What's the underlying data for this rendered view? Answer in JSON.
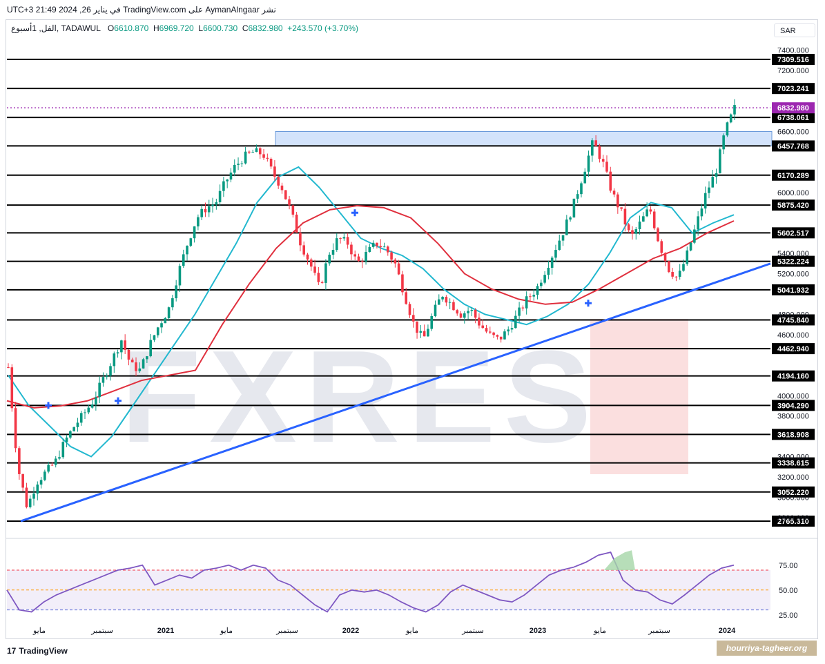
{
  "header": {
    "publisher": "نشر AymanAlngaar على TradingView.com في يناير 26, 2024 21:49 UTC+3",
    "symbol": "الفل, 1أسبوع, TADAWUL",
    "o_label": "O",
    "o_value": "6610.870",
    "h_label": "H",
    "h_value": "6969.720",
    "l_label": "L",
    "l_value": "6600.730",
    "c_label": "C",
    "c_value": "6832.980",
    "change": "+243.570 (+3.70%)",
    "currency": "SAR"
  },
  "footer": {
    "logo_text": "TradingView",
    "logo_mark": "17"
  },
  "watermark": {
    "text": "hourriya-tagheer.org",
    "logo_text": "FXRES"
  },
  "colors": {
    "bull": "#089981",
    "bear": "#f23645",
    "ma_fast": "#22b8cf",
    "ma_slow": "#e0303e",
    "trendline": "#2962ff",
    "rsi": "#7e57c2",
    "zone": "#cfe0fb",
    "current": "#9c27b0"
  },
  "chart_data": [
    {
      "type": "candlestick",
      "ylim": [
        2650,
        7500
      ],
      "x_labels": [
        "مايو",
        "سبتمبر",
        "2021",
        "مايو",
        "سبتمبر",
        "2022",
        "مايو",
        "سبتمبر",
        "2023",
        "مايو",
        "سبتمبر",
        "2024"
      ],
      "y_ticks": [
        "7400.000",
        "7200.000",
        "6600.000",
        "6000.000",
        "5400.000",
        "5200.000",
        "4800.000",
        "4600.000",
        "4000.000",
        "3800.000",
        "3400.000",
        "3200.000",
        "3000.000",
        "2800.000"
      ],
      "horizontal_levels": [
        "7309.516",
        "7023.241",
        "6738.061",
        "6457.768",
        "6170.289",
        "5875.420",
        "5602.517",
        "5322.224",
        "5041.932",
        "4745.840",
        "4462.940",
        "4194.160",
        "3904.290",
        "3618.908",
        "3338.615",
        "3052.220",
        "2765.310"
      ],
      "current_price": "6832.980",
      "resistance_zone": [
        6457.768,
        6600
      ],
      "trendline": [
        {
          "x": "2020-03",
          "y": 2765
        },
        {
          "x": "2024-01",
          "y": 5300
        }
      ],
      "series": [
        {
          "name": "",
          "kind": "close_path",
          "values": [
            4280,
            3300,
            2900,
            3150,
            3250,
            3350,
            3550,
            3700,
            3820,
            3950,
            4150,
            4350,
            4550,
            4300,
            4250,
            4500,
            4700,
            4850,
            5200,
            5500,
            5750,
            5850,
            5900,
            6100,
            6250,
            6350,
            6400,
            6380,
            6200,
            6050,
            5800,
            5500,
            5300,
            5050,
            5400,
            5550,
            5500,
            5300,
            5400,
            5500,
            5450,
            5300,
            5000,
            4700,
            4550,
            4800,
            5000,
            4900,
            4800,
            4850,
            4700,
            4600,
            4550,
            4650,
            4800,
            4950,
            5050,
            5250,
            5450,
            5650,
            5900,
            6200,
            6500,
            6300,
            6000,
            5800,
            5550,
            5700,
            5850,
            5500,
            5250,
            5150,
            5400,
            5700,
            6000,
            6200,
            6600,
            6830
          ]
        },
        {
          "name": "",
          "kind": "ma_fast",
          "values": [
            4200,
            3900,
            3700,
            3500,
            3400,
            3600,
            3900,
            4200,
            4500,
            4800,
            5150,
            5500,
            5900,
            6150,
            6250,
            6050,
            5800,
            5550,
            5450,
            5380,
            5250,
            5050,
            4900,
            4800,
            4750,
            4700,
            4780,
            4900,
            5100,
            5400,
            5750,
            5900,
            5850,
            5600,
            5700,
            5780
          ]
        },
        {
          "name": "",
          "kind": "ma_slow",
          "values": [
            3950,
            3880,
            3900,
            3950,
            4050,
            4150,
            4200,
            4250,
            4700,
            5100,
            5450,
            5700,
            5830,
            5870,
            5850,
            5750,
            5500,
            5200,
            5050,
            4950,
            4900,
            4920,
            5050,
            5200,
            5350,
            5450,
            5600,
            5720
          ]
        }
      ]
    },
    {
      "type": "line",
      "name": "RSI",
      "ylim": [
        20,
        95
      ],
      "y_ticks": [
        "75.00",
        "50.00",
        "25.00"
      ],
      "levels": [
        70,
        50,
        30
      ],
      "values": [
        50,
        30,
        28,
        38,
        45,
        50,
        55,
        60,
        65,
        70,
        72,
        75,
        55,
        60,
        65,
        62,
        70,
        72,
        75,
        70,
        75,
        72,
        60,
        55,
        45,
        35,
        28,
        45,
        50,
        48,
        50,
        45,
        38,
        32,
        28,
        35,
        48,
        55,
        50,
        45,
        40,
        38,
        45,
        55,
        65,
        70,
        73,
        78,
        85,
        88,
        60,
        50,
        48,
        40,
        36,
        45,
        55,
        65,
        72,
        75
      ]
    }
  ]
}
